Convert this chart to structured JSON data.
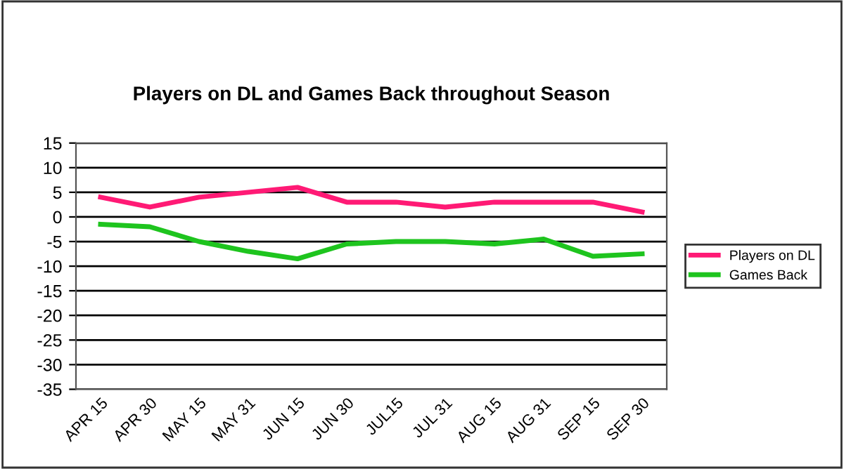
{
  "chart_data": {
    "type": "line",
    "title": "Players on DL and Games Back throughout Season",
    "categories": [
      "APR 15",
      "APR 30",
      "MAY 15",
      "MAY 31",
      "JUN 15",
      "JUN 30",
      "JUL15",
      "JUL 31",
      "AUG 15",
      "AUG 31",
      "SEP 15",
      "SEP 30"
    ],
    "series": [
      {
        "name": "Players on DL",
        "color": "#ff1a75",
        "values": [
          4,
          2,
          4,
          5,
          6,
          3,
          3,
          2,
          3,
          3,
          3,
          1
        ]
      },
      {
        "name": "Games Back",
        "color": "#1ec41e",
        "values": [
          -1.5,
          -2,
          -5,
          -7,
          -8.5,
          -5.5,
          -5,
          -5,
          -5.5,
          -4.5,
          -8,
          -7.5
        ]
      }
    ],
    "ylim": [
      -35,
      15
    ],
    "yticks": [
      -35,
      -30,
      -25,
      -20,
      -15,
      -10,
      -5,
      0,
      5,
      10,
      15
    ],
    "grid": "y",
    "legend": "right",
    "marker": "none",
    "line_style": "solid"
  }
}
